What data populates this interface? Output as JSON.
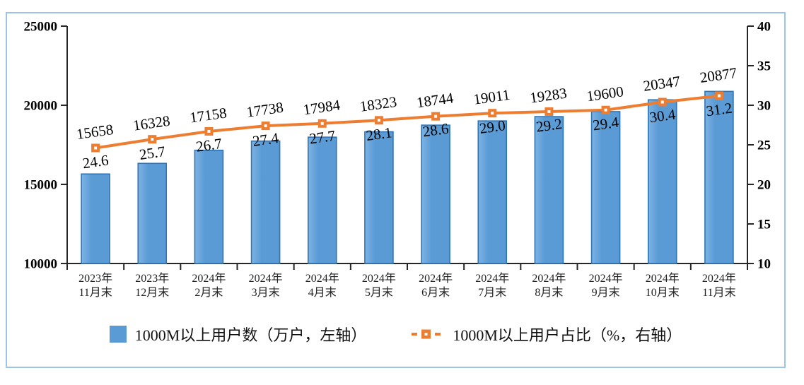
{
  "chart_data": {
    "type": "combo-bar-line",
    "title": "",
    "categories": [
      [
        "2023年",
        "11月末"
      ],
      [
        "2023年",
        "12月末"
      ],
      [
        "2024年",
        "2月末"
      ],
      [
        "2024年",
        "3月末"
      ],
      [
        "2024年",
        "4月末"
      ],
      [
        "2024年",
        "5月末"
      ],
      [
        "2024年",
        "6月末"
      ],
      [
        "2024年",
        "7月末"
      ],
      [
        "2024年",
        "8月末"
      ],
      [
        "2024年",
        "9月末"
      ],
      [
        "2024年",
        "10月末"
      ],
      [
        "2024年",
        "11月末"
      ]
    ],
    "series": [
      {
        "name": "1000M以上用户数（万户，左轴）",
        "type": "bar",
        "axis": "left",
        "values": [
          15658,
          16328,
          17158,
          17738,
          17984,
          18323,
          18744,
          19011,
          19283,
          19600,
          20347,
          20877
        ],
        "color": "#5B9BD5",
        "color_light": "#7DB3E3",
        "border_color": "#2E75B6"
      },
      {
        "name": "1000M以上用户占比（%，右轴）",
        "type": "line",
        "axis": "right",
        "values": [
          24.6,
          25.7,
          26.7,
          27.4,
          27.7,
          28.1,
          28.6,
          29.0,
          29.2,
          29.4,
          30.4,
          31.2
        ],
        "color": "#ED7D31",
        "marker": "square-open"
      }
    ],
    "left_axis": {
      "min": 10000,
      "max": 25000,
      "step": 5000,
      "ticks": [
        "10000",
        "15000",
        "20000",
        "25000"
      ]
    },
    "right_axis": {
      "min": 10,
      "max": 40,
      "step": 5,
      "ticks": [
        "10",
        "15",
        "20",
        "25",
        "30",
        "35",
        "40"
      ]
    },
    "grid": false,
    "legend_position": "bottom",
    "axis_color": "#262626",
    "label_color": "#000000",
    "frame_color": "#9DC3E6"
  }
}
